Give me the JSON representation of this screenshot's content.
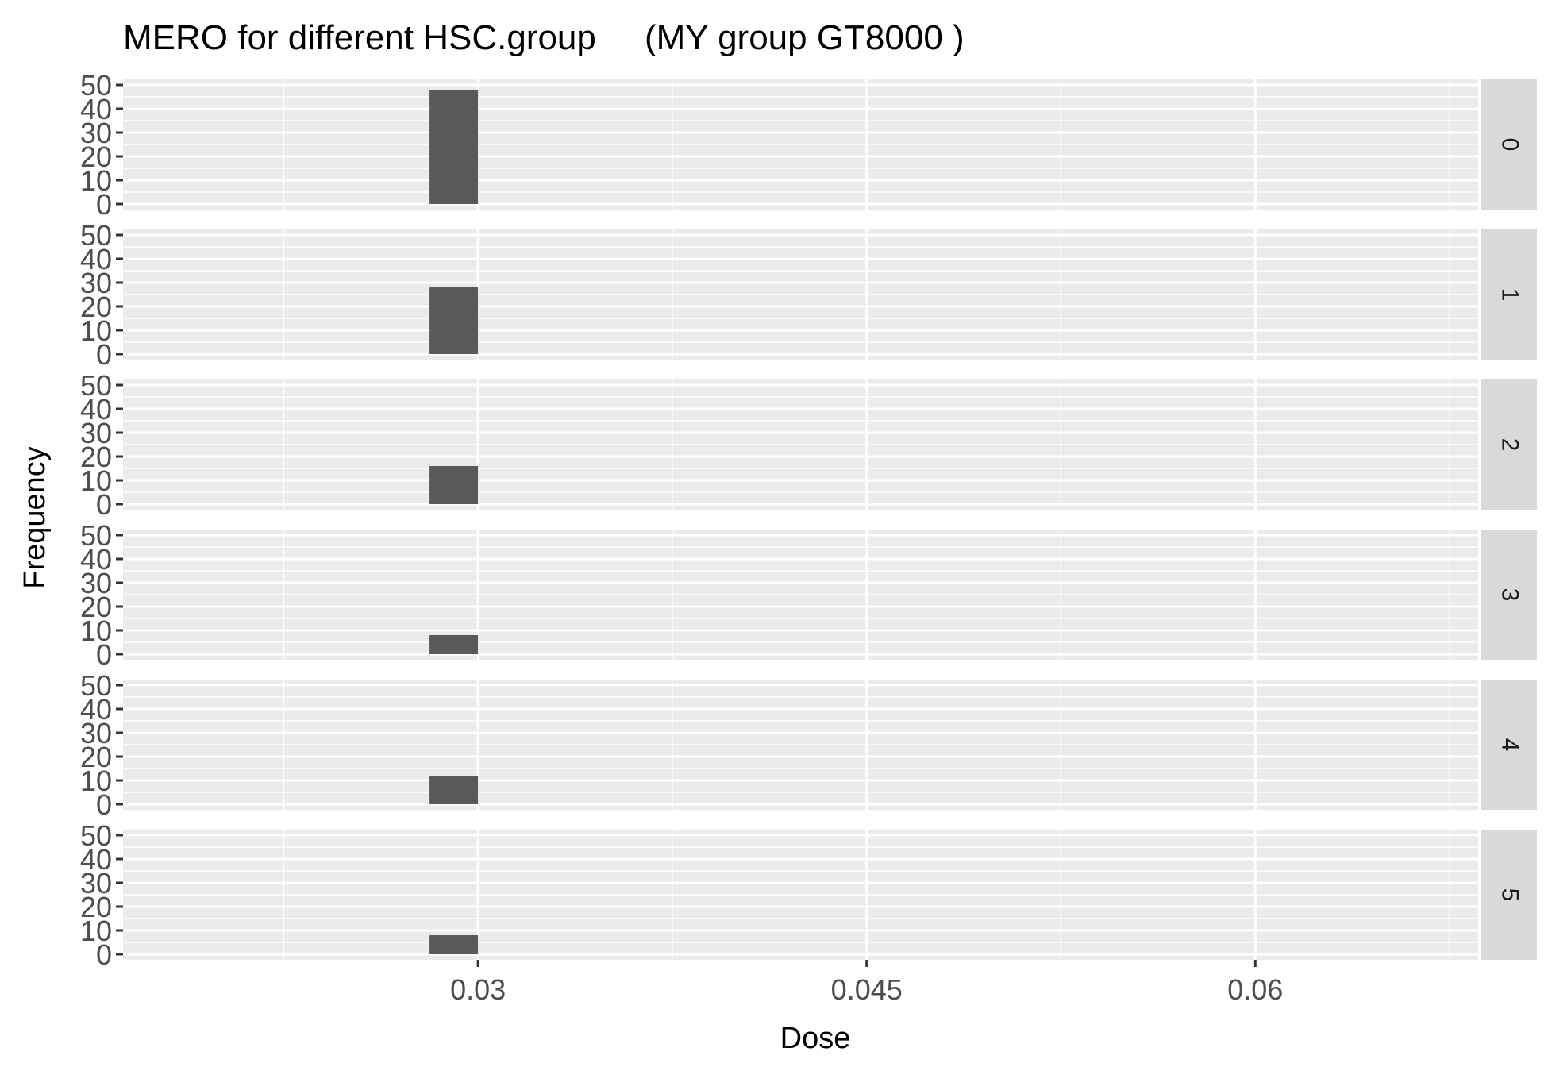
{
  "chart_data": {
    "type": "bar",
    "title": "MERO for different HSC.group     (MY group GT8000 )",
    "xlabel": "Dose",
    "ylabel": "Frequency",
    "x_ticks": [
      "0.03",
      "0.045",
      "0.06"
    ],
    "x_tick_values": [
      0.03,
      0.045,
      0.06
    ],
    "xlim": [
      0.0163,
      0.0686
    ],
    "y_ticks": [
      "0",
      "10",
      "20",
      "30",
      "40",
      "50"
    ],
    "ylim": [
      0,
      50
    ],
    "bin": [
      0.02813,
      0.03
    ],
    "facets": [
      {
        "label": "0",
        "value": 48
      },
      {
        "label": "1",
        "value": 28
      },
      {
        "label": "2",
        "value": 16
      },
      {
        "label": "3",
        "value": 8
      },
      {
        "label": "4",
        "value": 12
      },
      {
        "label": "5",
        "value": 8
      }
    ],
    "grid": true,
    "colors": {
      "panel_bg": "#ebebeb",
      "grid": "#ffffff",
      "bar": "#595959",
      "strip_bg": "#d9d9d9",
      "tick_text": "#4d4d4d"
    }
  }
}
